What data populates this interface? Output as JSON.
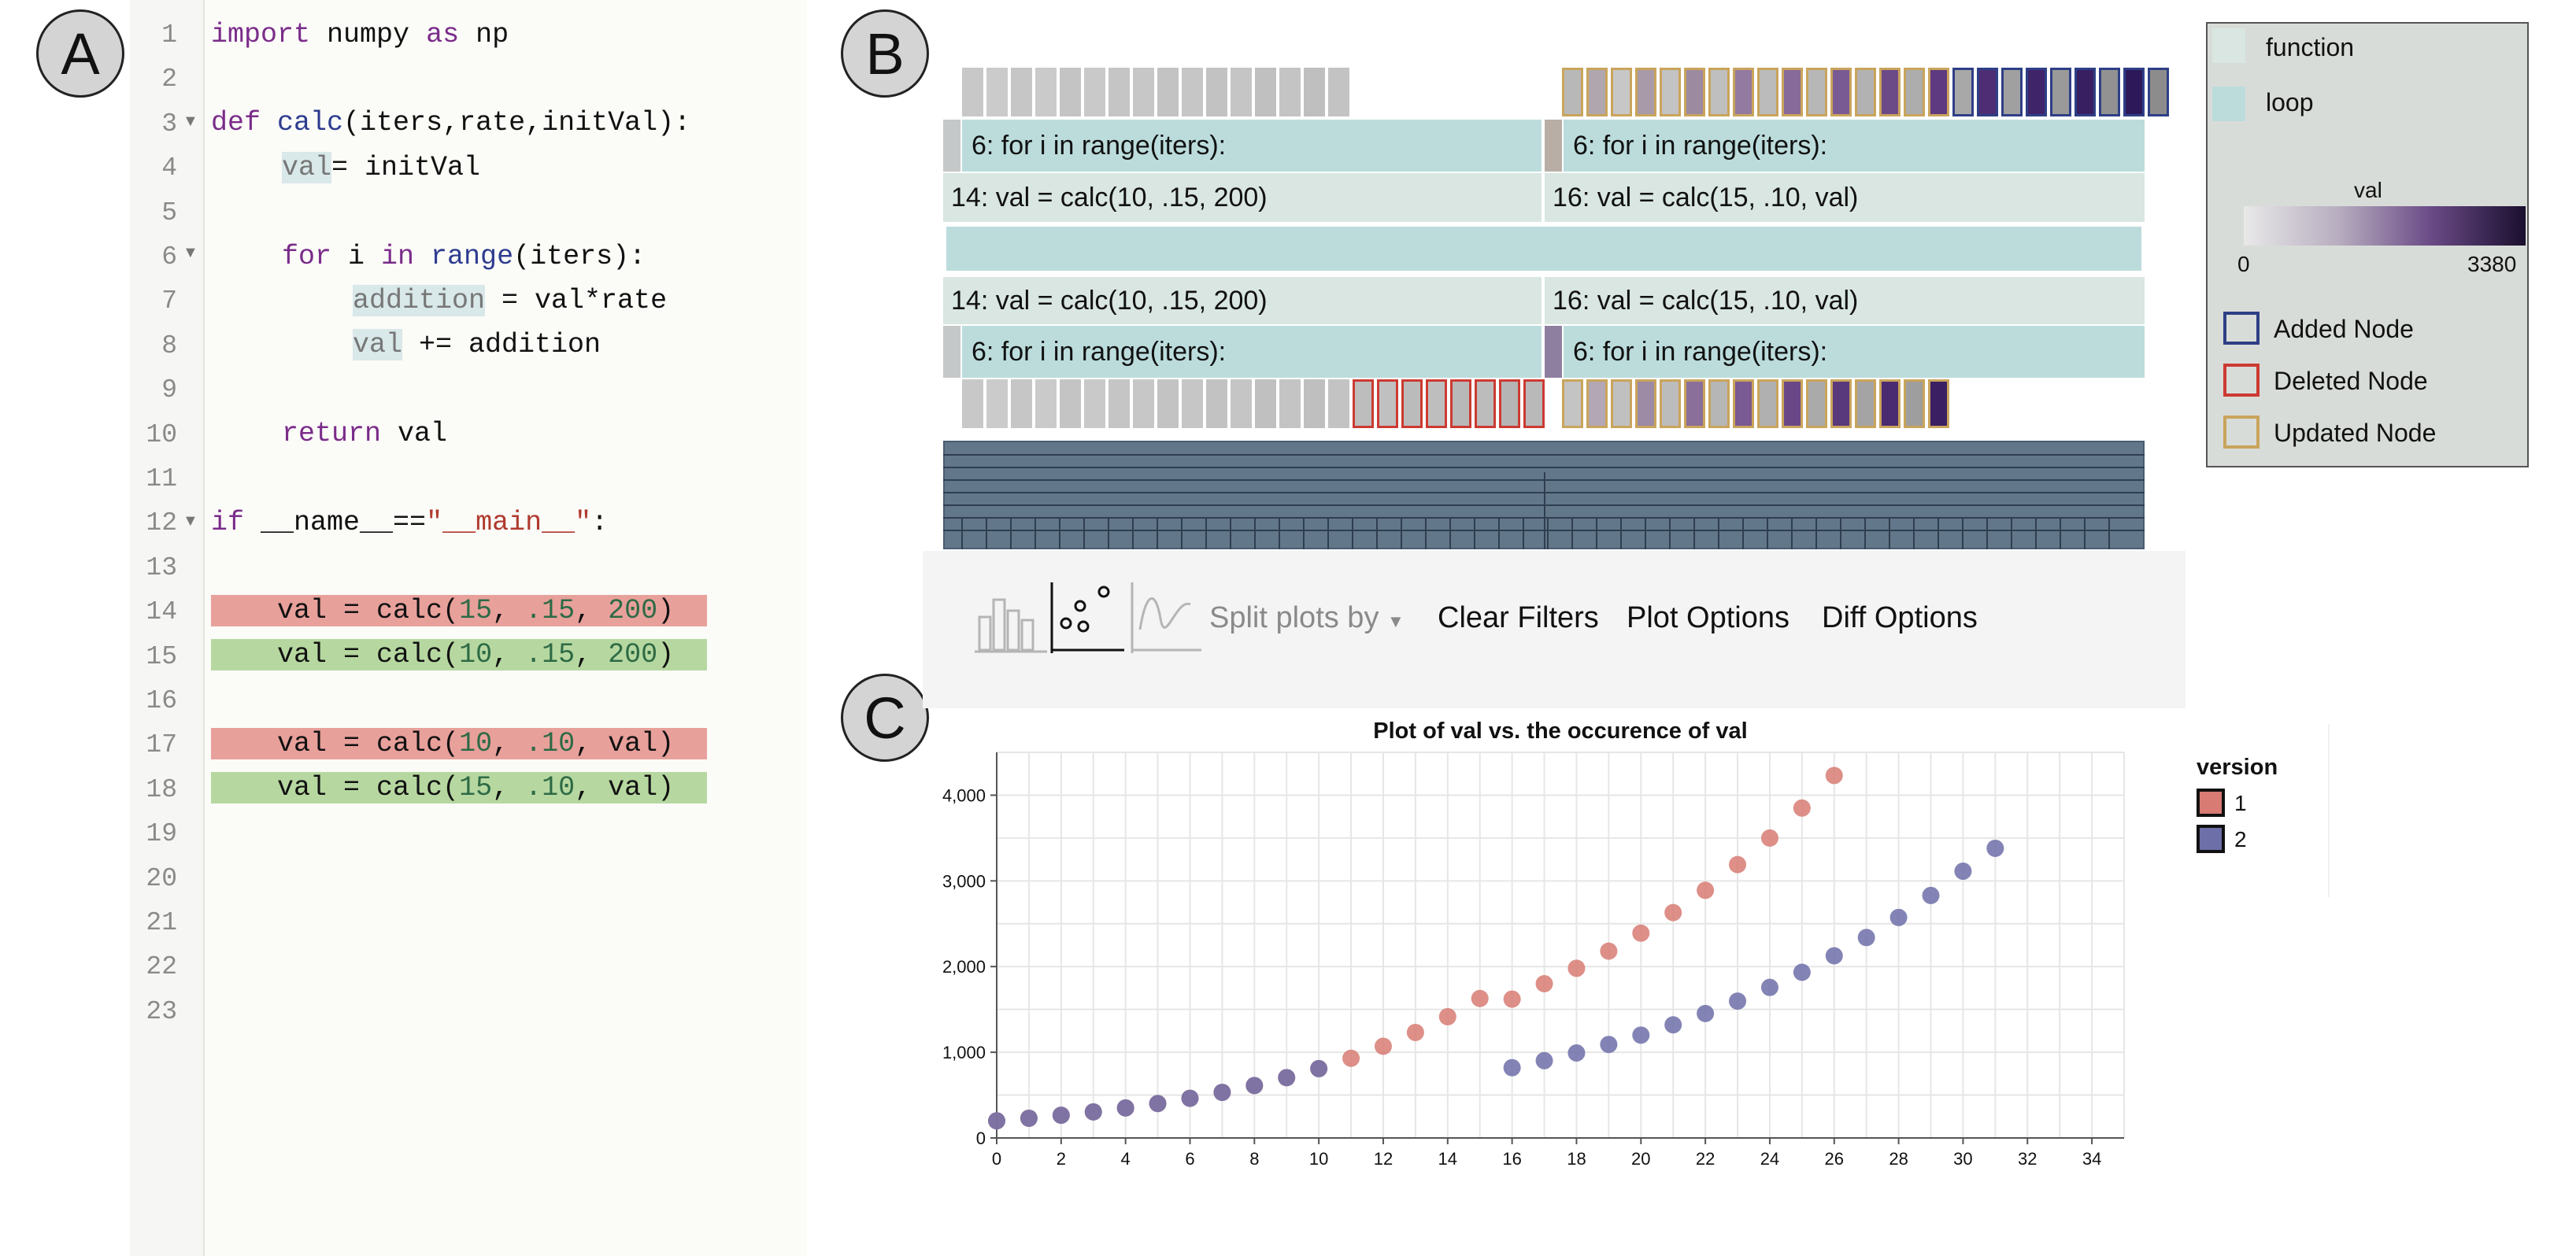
{
  "panel_labels": {
    "a": "A",
    "b": "B",
    "c": "C"
  },
  "editor": {
    "line_numbers": [
      "1",
      "2",
      "3",
      "4",
      "5",
      "6",
      "7",
      "8",
      "9",
      "10",
      "11",
      "12",
      "13",
      "14",
      "15",
      "16",
      "17",
      "18",
      "19",
      "20",
      "21",
      "22",
      "23"
    ],
    "lines": {
      "l1_import": "import",
      "l1_mod": " numpy ",
      "l1_as": "as",
      "l1_np": " np",
      "l3_def": "def",
      "l3_calc": " calc",
      "l3_args": "(iters,rate,initVal):",
      "l4_val": "val",
      "l4_rest": "= initVal",
      "l6_for": "for",
      "l6_i": " i ",
      "l6_in": "in",
      "l6_range": " range",
      "l6_rest": "(iters):",
      "l7_add": "addition",
      "l7_rest": " = val*rate",
      "l8_val": "val",
      "l8_rest": " += addition",
      "l10_return": "return",
      "l10_rest": " val",
      "l12_if": "if",
      "l12_mid": " __name__==",
      "l12_str": "\"__main__\"",
      "l12_colon": ":",
      "l14_a": "    val = calc(",
      "l14_n1": "15",
      "l14_c1": ", ",
      "l14_n2": ".15",
      "l14_c2": ", ",
      "l14_n3": "200",
      "l14_e": ")",
      "l15_a": "    val = calc(",
      "l15_n1": "10",
      "l15_c1": ", ",
      "l15_n2": ".15",
      "l15_c2": ", ",
      "l15_n3": "200",
      "l15_e": ")",
      "l17_a": "    val = calc(",
      "l17_n1": "10",
      "l17_c1": ", ",
      "l17_n2": ".10",
      "l17_e": ", val)",
      "l18_a": "    val = calc(",
      "l18_n1": "15",
      "l18_c1": ", ",
      "l18_n2": ".10",
      "l18_e": ", val)"
    }
  },
  "tree": {
    "top_loop_left": "6: for i in range(iters):",
    "top_loop_right": "6: for i in range(iters):",
    "top_func_left": "14: val = calc(10, .15, 200)",
    "top_func_right": "16: val = calc(15, .10, val)",
    "bot_func_left": "14: val = calc(10, .15, 200)",
    "bot_func_right": "16: val = calc(15, .10, val)",
    "bot_loop_left": "6: for i in range(iters):",
    "bot_loop_right": "6: for i in range(iters):"
  },
  "legend": {
    "function": "function",
    "loop": "loop",
    "val_title": "val",
    "scale_min": "0",
    "scale_max": "3380",
    "added": "Added Node",
    "deleted": "Deleted Node",
    "updated": "Updated Node",
    "colors": {
      "function": "#d9e6e2",
      "loop": "#bcdcdc",
      "added": "#2e3f86",
      "deleted": "#cc3a32",
      "updated": "#c9a45c"
    }
  },
  "toolbar": {
    "split": "Split plots by",
    "clear": "Clear Filters",
    "plot_options": "Plot Options",
    "diff_options": "Diff Options"
  },
  "chart_data": {
    "type": "scatter",
    "title": "Plot of val vs. the occurence of val",
    "xlabel": "",
    "ylabel": "",
    "xlim": [
      0,
      35
    ],
    "ylim": [
      0,
      4500
    ],
    "xticks": [
      0,
      2,
      4,
      6,
      8,
      10,
      12,
      14,
      16,
      18,
      20,
      22,
      24,
      26,
      28,
      30,
      32,
      34
    ],
    "yticks": [
      0,
      1000,
      2000,
      3000,
      4000
    ],
    "ytick_labels": [
      "0",
      "1,000",
      "2,000",
      "3,000",
      "4,000"
    ],
    "grid": true,
    "legend_title": "version",
    "legend_position": "right",
    "series": [
      {
        "name": "1",
        "color": "#d77b73",
        "x": [
          0,
          1,
          2,
          3,
          4,
          5,
          6,
          7,
          8,
          9,
          10,
          11,
          12,
          13,
          14,
          15,
          16,
          17,
          18,
          19,
          20,
          21,
          22,
          23,
          24,
          25,
          26
        ],
        "y": [
          200,
          230,
          265,
          304,
          350,
          402,
          463,
          532,
          612,
          704,
          809,
          930,
          1070,
          1231,
          1415,
          1628,
          1620,
          1800,
          1980,
          2180,
          2390,
          2630,
          2890,
          3190,
          3500,
          3850,
          4230
        ]
      },
      {
        "name": "2",
        "color": "#6d6fa8",
        "x": [
          0,
          1,
          2,
          3,
          4,
          5,
          6,
          7,
          8,
          9,
          10,
          16,
          17,
          18,
          19,
          20,
          21,
          22,
          23,
          24,
          25,
          26,
          27,
          28,
          29,
          30,
          31
        ],
        "y": [
          200,
          230,
          265,
          304,
          350,
          402,
          463,
          532,
          612,
          704,
          809,
          820,
          902,
          992,
          1091,
          1200,
          1320,
          1452,
          1597,
          1757,
          1933,
          2126,
          2339,
          2573,
          2830,
          3113,
          3380
        ]
      }
    ]
  }
}
